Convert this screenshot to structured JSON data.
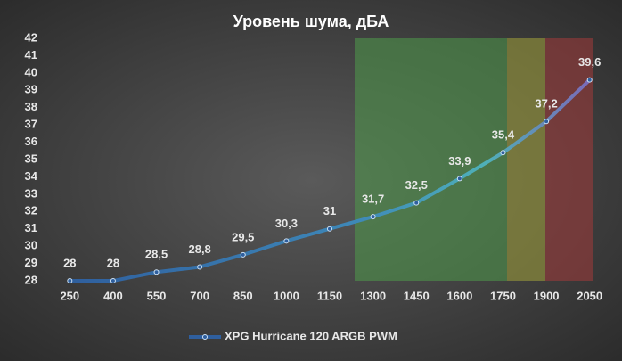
{
  "chart_data": {
    "type": "line",
    "title": "Уровень шума, дБА",
    "categories": [
      "250",
      "400",
      "550",
      "700",
      "850",
      "1000",
      "1150",
      "1300",
      "1450",
      "1600",
      "1750",
      "1900",
      "2050"
    ],
    "series": [
      {
        "name": "XPG Hurricane 120 ARGB PWM",
        "color": "#2f5f9e",
        "values": [
          28,
          28,
          28.5,
          28.8,
          29.5,
          30.3,
          31,
          31.7,
          32.5,
          33.9,
          35.4,
          37.2,
          39.6
        ],
        "value_labels": [
          "28",
          "28",
          "28,5",
          "28,8",
          "29,5",
          "30,3",
          "31",
          "31,7",
          "32,5",
          "33,9",
          "35,4",
          "37,2",
          "39,6"
        ]
      }
    ],
    "ylim": [
      28,
      42
    ],
    "yticks": [
      28,
      29,
      30,
      31,
      32,
      33,
      34,
      35,
      36,
      37,
      38,
      39,
      40,
      41,
      42
    ],
    "legend": "bottom"
  }
}
